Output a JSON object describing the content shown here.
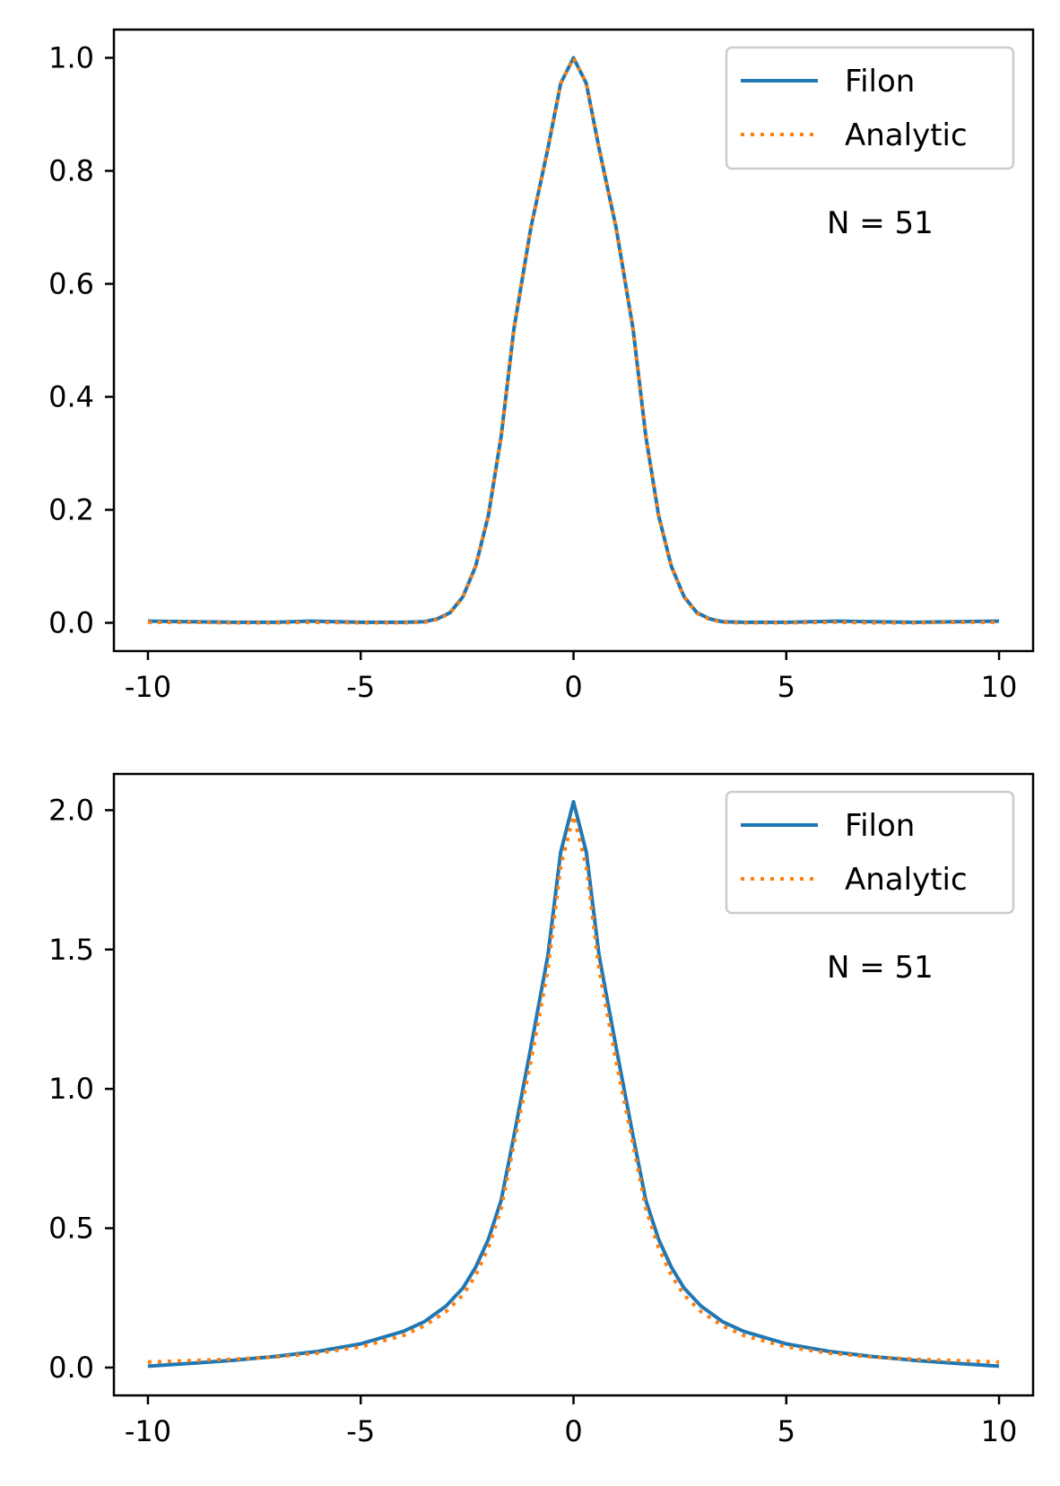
{
  "chart_data": [
    {
      "type": "line",
      "title": "",
      "xlabel": "",
      "ylabel": "",
      "xlim": [
        -10.8,
        10.8
      ],
      "ylim": [
        -0.05,
        1.05
      ],
      "xticks": [
        -10,
        -5,
        0,
        5,
        10
      ],
      "xtick_labels": [
        "-10",
        "-5",
        "0",
        "5",
        "10"
      ],
      "yticks": [
        0.0,
        0.2,
        0.4,
        0.6,
        0.8,
        1.0
      ],
      "ytick_labels": [
        "0.0",
        "0.2",
        "0.4",
        "0.6",
        "0.8",
        "1.0"
      ],
      "grid": false,
      "legend_position": "top-right",
      "annotation": "N = 51",
      "series": [
        {
          "name": "Filon",
          "color": "#1f77b4",
          "style": "solid",
          "x": [
            -10,
            -9,
            -8,
            -7,
            -6.2,
            -5,
            -4,
            -3.5,
            -3.2,
            -2.9,
            -2.6,
            -2.3,
            -2.0,
            -1.7,
            -1.4,
            -1.0,
            -0.6,
            -0.3,
            0,
            0.3,
            0.6,
            1.0,
            1.4,
            1.7,
            2.0,
            2.3,
            2.6,
            2.9,
            3.2,
            3.5,
            4,
            5,
            6.2,
            7,
            8,
            9,
            10
          ],
          "y": [
            0.003,
            0.002,
            0.001,
            0.001,
            0.003,
            0.001,
            0.001,
            0.002,
            0.007,
            0.018,
            0.046,
            0.1,
            0.19,
            0.33,
            0.52,
            0.7,
            0.84,
            0.955,
            1.0,
            0.955,
            0.84,
            0.7,
            0.52,
            0.33,
            0.19,
            0.1,
            0.046,
            0.018,
            0.007,
            0.002,
            0.001,
            0.001,
            0.003,
            0.002,
            0.001,
            0.002,
            0.003
          ]
        },
        {
          "name": "Analytic",
          "color": "#ff7f0e",
          "style": "dotted",
          "x": [
            -10,
            -9,
            -8,
            -7,
            -6.2,
            -5,
            -4,
            -3.5,
            -3.2,
            -2.9,
            -2.6,
            -2.3,
            -2.0,
            -1.7,
            -1.4,
            -1.0,
            -0.6,
            -0.3,
            0,
            0.3,
            0.6,
            1.0,
            1.4,
            1.7,
            2.0,
            2.3,
            2.6,
            2.9,
            3.2,
            3.5,
            4,
            5,
            6.2,
            7,
            8,
            9,
            10
          ],
          "y": [
            0.001,
            0.001,
            0.0,
            0.0,
            0.001,
            0.0,
            0.0,
            0.001,
            0.006,
            0.017,
            0.045,
            0.1,
            0.19,
            0.33,
            0.52,
            0.7,
            0.84,
            0.955,
            1.0,
            0.955,
            0.84,
            0.7,
            0.52,
            0.33,
            0.19,
            0.1,
            0.045,
            0.017,
            0.006,
            0.001,
            0.0,
            0.0,
            0.001,
            0.0,
            0.0,
            0.001,
            0.001
          ]
        }
      ]
    },
    {
      "type": "line",
      "title": "",
      "xlabel": "",
      "ylabel": "",
      "xlim": [
        -10.8,
        10.8
      ],
      "ylim": [
        -0.1,
        2.13
      ],
      "xticks": [
        -10,
        -5,
        0,
        5,
        10
      ],
      "xtick_labels": [
        "-10",
        "-5",
        "0",
        "5",
        "10"
      ],
      "yticks": [
        0.0,
        0.5,
        1.0,
        1.5,
        2.0
      ],
      "ytick_labels": [
        "0.0",
        "0.5",
        "1.0",
        "1.5",
        "2.0"
      ],
      "grid": false,
      "legend_position": "top-right",
      "annotation": "N = 51",
      "series": [
        {
          "name": "Filon",
          "color": "#1f77b4",
          "style": "solid",
          "x": [
            -10,
            -9,
            -8,
            -7,
            -6,
            -5,
            -4,
            -3.5,
            -3,
            -2.6,
            -2.3,
            -2.0,
            -1.7,
            -1.4,
            -1.0,
            -0.6,
            -0.3,
            0,
            0.3,
            0.6,
            1.0,
            1.4,
            1.7,
            2.0,
            2.3,
            2.6,
            3,
            3.5,
            4,
            5,
            6,
            7,
            8,
            9,
            10
          ],
          "y": [
            0.005,
            0.015,
            0.026,
            0.04,
            0.058,
            0.085,
            0.13,
            0.165,
            0.22,
            0.285,
            0.36,
            0.46,
            0.6,
            0.83,
            1.15,
            1.48,
            1.85,
            2.03,
            1.85,
            1.48,
            1.15,
            0.83,
            0.6,
            0.46,
            0.36,
            0.285,
            0.22,
            0.165,
            0.13,
            0.085,
            0.058,
            0.04,
            0.026,
            0.015,
            0.005
          ]
        },
        {
          "name": "Analytic",
          "color": "#ff7f0e",
          "style": "dotted",
          "x": [
            -10,
            -9,
            -8,
            -7,
            -6,
            -5,
            -4,
            -3.5,
            -3,
            -2.6,
            -2.3,
            -2.0,
            -1.7,
            -1.4,
            -1.0,
            -0.6,
            -0.3,
            0,
            0.3,
            0.6,
            1.0,
            1.4,
            1.7,
            2.0,
            2.3,
            2.6,
            3,
            3.5,
            4,
            5,
            6,
            7,
            8,
            9,
            10
          ],
          "y": [
            0.02,
            0.025,
            0.03,
            0.038,
            0.052,
            0.074,
            0.115,
            0.15,
            0.2,
            0.26,
            0.33,
            0.43,
            0.57,
            0.8,
            1.1,
            1.43,
            1.8,
            1.98,
            1.8,
            1.43,
            1.1,
            0.8,
            0.57,
            0.43,
            0.33,
            0.26,
            0.2,
            0.15,
            0.115,
            0.074,
            0.052,
            0.038,
            0.03,
            0.025,
            0.02
          ]
        }
      ]
    }
  ]
}
